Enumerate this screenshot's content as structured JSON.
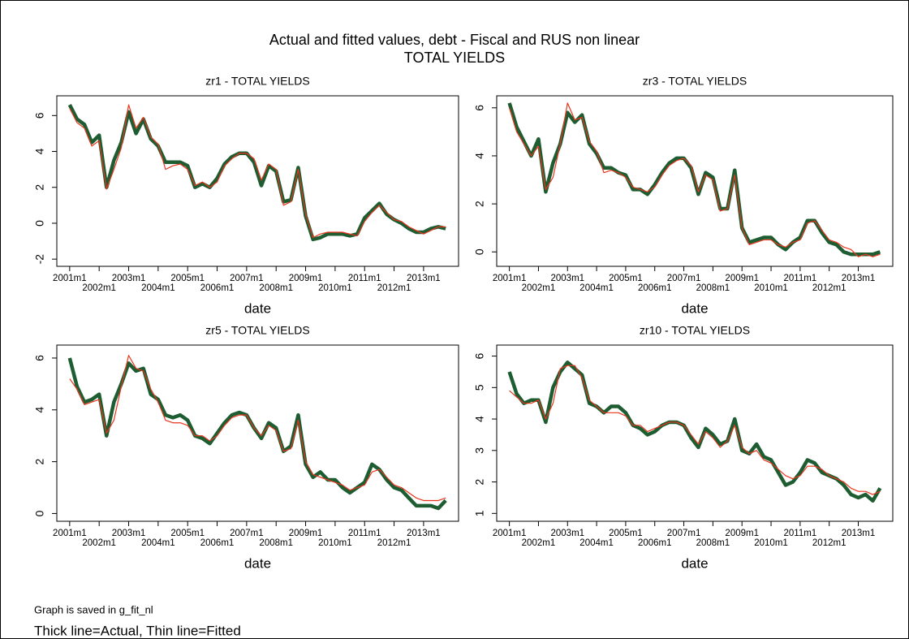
{
  "title": "Actual and fitted values, debt  - Fiscal and RUS non linear",
  "subtitle": "TOTAL YIELDS",
  "notes": [
    "Graph is saved in g_fit_nl",
    "Thick line=Actual, Thin line=Fitted"
  ],
  "chart_data": [
    {
      "type": "line",
      "title": "zr1 - TOTAL YIELDS",
      "x_label": "date",
      "x": [
        "2001m1",
        "2001m4",
        "2001m7",
        "2001m10",
        "2002m1",
        "2002m4",
        "2002m7",
        "2002m10",
        "2003m1",
        "2003m4",
        "2003m7",
        "2003m10",
        "2004m1",
        "2004m4",
        "2004m7",
        "2004m10",
        "2005m1",
        "2005m4",
        "2005m7",
        "2005m10",
        "2006m1",
        "2006m4",
        "2006m7",
        "2006m10",
        "2007m1",
        "2007m4",
        "2007m7",
        "2007m10",
        "2008m1",
        "2008m4",
        "2008m7",
        "2008m10",
        "2009m1",
        "2009m4",
        "2009m7",
        "2009m10",
        "2010m1",
        "2010m4",
        "2010m7",
        "2010m10",
        "2011m1",
        "2011m4",
        "2011m7",
        "2011m10",
        "2012m1",
        "2012m4",
        "2012m7",
        "2012m10",
        "2013m1",
        "2013m4",
        "2013m7",
        "2013m10"
      ],
      "xticks": [
        "2001m1",
        "2002m1",
        "2003m1",
        "2004m1",
        "2005m1",
        "2006m1",
        "2007m1",
        "2008m1",
        "2009m1",
        "2010m1",
        "2011m1",
        "2012m1",
        "2013m1"
      ],
      "ylim": [
        -2.4,
        7.1
      ],
      "yticks": [
        -2,
        0,
        2,
        4,
        6
      ],
      "series": [
        {
          "color": "#1e5c32",
          "values": [
            6.6,
            5.8,
            5.5,
            4.5,
            4.9,
            2.0,
            3.5,
            4.5,
            6.2,
            5.0,
            5.8,
            4.7,
            4.3,
            3.4,
            3.4,
            3.4,
            3.2,
            2.0,
            2.2,
            2.0,
            2.5,
            3.3,
            3.7,
            3.9,
            3.9,
            3.4,
            2.1,
            3.2,
            2.9,
            1.2,
            1.3,
            3.1,
            0.4,
            -0.9,
            -0.8,
            -0.6,
            -0.6,
            -0.6,
            -0.7,
            -0.6,
            0.3,
            0.7,
            1.1,
            0.5,
            0.2,
            0.0,
            -0.3,
            -0.5,
            -0.5,
            -0.3,
            -0.2,
            -0.3
          ]
        },
        {
          "color": "#e8341c",
          "values": [
            6.4,
            5.6,
            5.3,
            4.3,
            4.6,
            1.9,
            3.0,
            4.2,
            6.6,
            5.3,
            5.9,
            4.8,
            4.4,
            3.0,
            3.2,
            3.3,
            3.0,
            2.1,
            2.3,
            2.0,
            2.3,
            3.2,
            3.6,
            3.9,
            3.9,
            3.6,
            2.4,
            3.3,
            3.0,
            1.0,
            1.2,
            3.0,
            0.5,
            -0.8,
            -0.6,
            -0.5,
            -0.5,
            -0.5,
            -0.6,
            -0.7,
            0.1,
            0.6,
            1.0,
            0.6,
            0.2,
            0.1,
            -0.2,
            -0.4,
            -0.6,
            -0.4,
            -0.2,
            -0.2
          ]
        }
      ]
    },
    {
      "type": "line",
      "title": "zr3 - TOTAL YIELDS",
      "x_label": "date",
      "x": [
        "2001m1",
        "2001m4",
        "2001m7",
        "2001m10",
        "2002m1",
        "2002m4",
        "2002m7",
        "2002m10",
        "2003m1",
        "2003m4",
        "2003m7",
        "2003m10",
        "2004m1",
        "2004m4",
        "2004m7",
        "2004m10",
        "2005m1",
        "2005m4",
        "2005m7",
        "2005m10",
        "2006m1",
        "2006m4",
        "2006m7",
        "2006m10",
        "2007m1",
        "2007m4",
        "2007m7",
        "2007m10",
        "2008m1",
        "2008m4",
        "2008m7",
        "2008m10",
        "2009m1",
        "2009m4",
        "2009m7",
        "2009m10",
        "2010m1",
        "2010m4",
        "2010m7",
        "2010m10",
        "2011m1",
        "2011m4",
        "2011m7",
        "2011m10",
        "2012m1",
        "2012m4",
        "2012m7",
        "2012m10",
        "2013m1",
        "2013m4",
        "2013m7",
        "2013m10"
      ],
      "xticks": [
        "2001m1",
        "2002m1",
        "2003m1",
        "2004m1",
        "2005m1",
        "2006m1",
        "2007m1",
        "2008m1",
        "2009m1",
        "2010m1",
        "2011m1",
        "2012m1",
        "2013m1"
      ],
      "ylim": [
        -0.6,
        6.5
      ],
      "yticks": [
        0,
        2,
        4,
        6
      ],
      "series": [
        {
          "color": "#1e5c32",
          "values": [
            6.2,
            5.2,
            4.6,
            4.0,
            4.7,
            2.5,
            3.7,
            4.5,
            5.8,
            5.4,
            5.7,
            4.5,
            4.1,
            3.5,
            3.5,
            3.3,
            3.2,
            2.6,
            2.6,
            2.4,
            2.8,
            3.3,
            3.7,
            3.9,
            3.9,
            3.5,
            2.4,
            3.3,
            3.1,
            1.8,
            1.8,
            3.4,
            1.0,
            0.4,
            0.5,
            0.6,
            0.6,
            0.3,
            0.1,
            0.4,
            0.6,
            1.3,
            1.3,
            0.8,
            0.4,
            0.3,
            0.0,
            -0.1,
            -0.1,
            -0.1,
            -0.1,
            0.0
          ]
        },
        {
          "color": "#e8341c",
          "values": [
            6.0,
            5.0,
            4.5,
            4.0,
            4.4,
            2.6,
            3.1,
            4.5,
            6.2,
            5.5,
            5.6,
            4.6,
            4.2,
            3.3,
            3.4,
            3.3,
            3.1,
            2.7,
            2.6,
            2.5,
            2.7,
            3.2,
            3.6,
            3.8,
            3.9,
            3.6,
            2.5,
            3.2,
            3.0,
            1.7,
            1.8,
            3.2,
            1.0,
            0.3,
            0.4,
            0.5,
            0.5,
            0.3,
            0.2,
            0.4,
            0.5,
            1.2,
            1.3,
            0.9,
            0.5,
            0.4,
            0.2,
            0.1,
            -0.2,
            -0.1,
            -0.2,
            -0.1
          ]
        }
      ]
    },
    {
      "type": "line",
      "title": "zr5 - TOTAL YIELDS",
      "x_label": "date",
      "x": [
        "2001m1",
        "2001m4",
        "2001m7",
        "2001m10",
        "2002m1",
        "2002m4",
        "2002m7",
        "2002m10",
        "2003m1",
        "2003m4",
        "2003m7",
        "2003m10",
        "2004m1",
        "2004m4",
        "2004m7",
        "2004m10",
        "2005m1",
        "2005m4",
        "2005m7",
        "2005m10",
        "2006m1",
        "2006m4",
        "2006m7",
        "2006m10",
        "2007m1",
        "2007m4",
        "2007m7",
        "2007m10",
        "2008m1",
        "2008m4",
        "2008m7",
        "2008m10",
        "2009m1",
        "2009m4",
        "2009m7",
        "2009m10",
        "2010m1",
        "2010m4",
        "2010m7",
        "2010m10",
        "2011m1",
        "2011m4",
        "2011m7",
        "2011m10",
        "2012m1",
        "2012m4",
        "2012m7",
        "2012m10",
        "2013m1",
        "2013m4",
        "2013m7",
        "2013m10"
      ],
      "xticks": [
        "2001m1",
        "2002m1",
        "2003m1",
        "2004m1",
        "2005m1",
        "2006m1",
        "2007m1",
        "2008m1",
        "2009m1",
        "2010m1",
        "2011m1",
        "2012m1",
        "2013m1"
      ],
      "ylim": [
        -0.3,
        6.5
      ],
      "yticks": [
        0,
        2,
        4,
        6
      ],
      "series": [
        {
          "color": "#1e5c32",
          "values": [
            6.0,
            4.9,
            4.3,
            4.4,
            4.6,
            3.0,
            4.3,
            5.0,
            5.8,
            5.5,
            5.6,
            4.6,
            4.4,
            3.8,
            3.7,
            3.8,
            3.6,
            3.0,
            2.9,
            2.7,
            3.1,
            3.5,
            3.8,
            3.9,
            3.8,
            3.3,
            2.9,
            3.5,
            3.3,
            2.4,
            2.6,
            3.8,
            1.9,
            1.4,
            1.6,
            1.3,
            1.3,
            1.0,
            0.8,
            1.0,
            1.2,
            1.9,
            1.7,
            1.3,
            1.0,
            0.9,
            0.6,
            0.3,
            0.3,
            0.3,
            0.2,
            0.5
          ]
        },
        {
          "color": "#e8341c",
          "values": [
            5.2,
            4.8,
            4.2,
            4.3,
            4.4,
            3.1,
            3.6,
            4.9,
            6.1,
            5.6,
            5.5,
            4.8,
            4.3,
            3.6,
            3.5,
            3.5,
            3.4,
            3.0,
            3.0,
            2.8,
            3.0,
            3.4,
            3.7,
            3.8,
            3.8,
            3.3,
            3.0,
            3.4,
            3.2,
            2.4,
            2.5,
            3.6,
            2.0,
            1.5,
            1.4,
            1.3,
            1.2,
            1.1,
            0.9,
            1.0,
            1.1,
            1.6,
            1.7,
            1.4,
            1.1,
            1.0,
            0.8,
            0.6,
            0.5,
            0.5,
            0.5,
            0.6
          ]
        }
      ]
    },
    {
      "type": "line",
      "title": "zr10 - TOTAL YIELDS",
      "x_label": "date",
      "x": [
        "2001m1",
        "2001m4",
        "2001m7",
        "2001m10",
        "2002m1",
        "2002m4",
        "2002m7",
        "2002m10",
        "2003m1",
        "2003m4",
        "2003m7",
        "2003m10",
        "2004m1",
        "2004m4",
        "2004m7",
        "2004m10",
        "2005m1",
        "2005m4",
        "2005m7",
        "2005m10",
        "2006m1",
        "2006m4",
        "2006m7",
        "2006m10",
        "2007m1",
        "2007m4",
        "2007m7",
        "2007m10",
        "2008m1",
        "2008m4",
        "2008m7",
        "2008m10",
        "2009m1",
        "2009m4",
        "2009m7",
        "2009m10",
        "2010m1",
        "2010m4",
        "2010m7",
        "2010m10",
        "2011m1",
        "2011m4",
        "2011m7",
        "2011m10",
        "2012m1",
        "2012m4",
        "2012m7",
        "2012m10",
        "2013m1",
        "2013m4",
        "2013m7",
        "2013m10"
      ],
      "xticks": [
        "2001m1",
        "2002m1",
        "2003m1",
        "2004m1",
        "2005m1",
        "2006m1",
        "2007m1",
        "2008m1",
        "2009m1",
        "2010m1",
        "2011m1",
        "2012m1",
        "2013m1"
      ],
      "ylim": [
        0.75,
        6.35
      ],
      "yticks": [
        1,
        2,
        3,
        4,
        5,
        6
      ],
      "series": [
        {
          "color": "#1e5c32",
          "values": [
            5.5,
            4.8,
            4.5,
            4.6,
            4.6,
            3.9,
            5.0,
            5.5,
            5.8,
            5.6,
            5.4,
            4.5,
            4.4,
            4.2,
            4.4,
            4.4,
            4.2,
            3.8,
            3.7,
            3.5,
            3.6,
            3.8,
            3.9,
            3.9,
            3.8,
            3.4,
            3.1,
            3.7,
            3.5,
            3.2,
            3.3,
            4.0,
            3.0,
            2.9,
            3.2,
            2.8,
            2.7,
            2.3,
            1.9,
            2.0,
            2.3,
            2.7,
            2.6,
            2.3,
            2.2,
            2.1,
            1.9,
            1.6,
            1.5,
            1.6,
            1.4,
            1.8
          ]
        },
        {
          "color": "#e8341c",
          "values": [
            4.9,
            4.7,
            4.5,
            4.5,
            4.6,
            4.0,
            4.5,
            5.6,
            5.7,
            5.7,
            5.3,
            4.6,
            4.4,
            4.2,
            4.2,
            4.2,
            4.1,
            3.8,
            3.8,
            3.6,
            3.7,
            3.8,
            3.9,
            3.9,
            3.8,
            3.5,
            3.2,
            3.6,
            3.4,
            3.1,
            3.3,
            3.8,
            3.1,
            2.9,
            3.0,
            2.7,
            2.6,
            2.4,
            2.2,
            2.1,
            2.2,
            2.5,
            2.5,
            2.4,
            2.2,
            2.1,
            2.0,
            1.8,
            1.7,
            1.7,
            1.6,
            1.7
          ]
        }
      ]
    }
  ]
}
